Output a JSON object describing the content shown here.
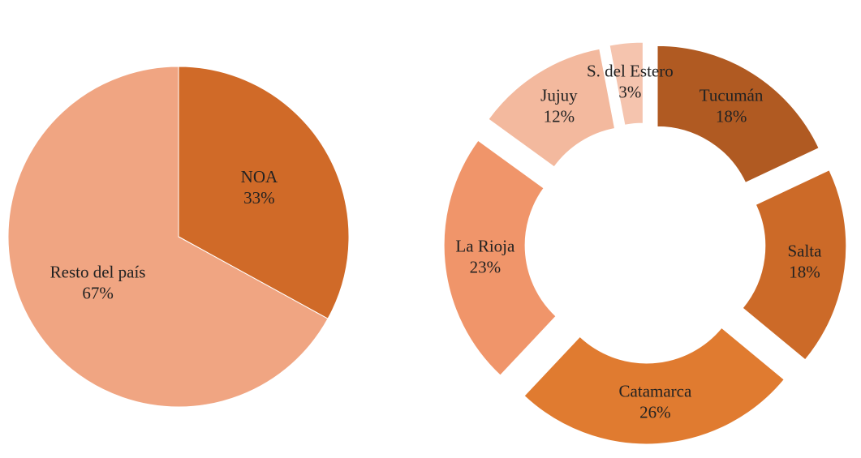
{
  "chart_data": [
    {
      "type": "pie",
      "categories": [
        "NOA",
        "Resto del país"
      ],
      "values": [
        33,
        67
      ],
      "value_labels": [
        "33%",
        "67%"
      ],
      "colors": [
        "#d06a28",
        "#f0a582"
      ]
    },
    {
      "type": "donut",
      "categories": [
        "Tucumán",
        "Salta",
        "Catamarca",
        "La Rioja",
        "Jujuy",
        "S. del Estero"
      ],
      "values": [
        18,
        18,
        26,
        23,
        12,
        3
      ],
      "value_labels": [
        "18%",
        "18%",
        "26%",
        "23%",
        "12%",
        "3%"
      ],
      "colors": [
        "#b05a22",
        "#cc6a28",
        "#e07b30",
        "#f0956a",
        "#f3b99e",
        "#f5c4ae"
      ]
    }
  ]
}
